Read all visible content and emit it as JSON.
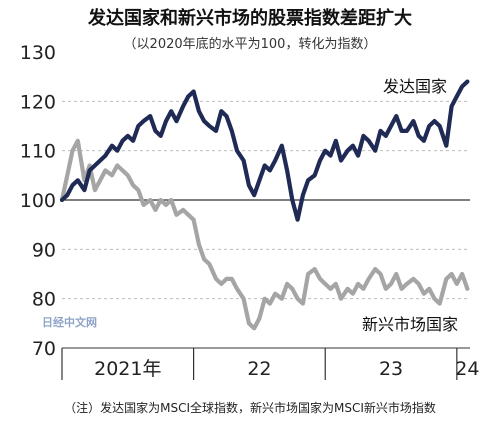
{
  "chart_data": {
    "type": "line",
    "title": "发达国家和新兴市场的股票指数差距扩大",
    "subtitle": "（以2020年底的水平为100，转化为指数）",
    "ylim": [
      70,
      130
    ],
    "yticks": [
      70,
      80,
      90,
      100,
      110,
      120,
      130
    ],
    "xlim": [
      2021.0,
      2024.1
    ],
    "xticks": [
      {
        "x": 2021.0,
        "label": ""
      },
      {
        "x": 2022.0,
        "label": ""
      },
      {
        "x": 2023.0,
        "label": ""
      },
      {
        "x": 2024.0,
        "label": ""
      }
    ],
    "xtick_labels": [
      {
        "x": 2021.5,
        "label": "2021年"
      },
      {
        "x": 2022.5,
        "label": "22"
      },
      {
        "x": 2023.5,
        "label": "23"
      },
      {
        "x": 2024.08,
        "label": "24"
      }
    ],
    "grid": true,
    "baseline": 100,
    "series": [
      {
        "name": "发达国家",
        "color": "#1f2a55",
        "x": [
          2021.0,
          2021.04,
          2021.08,
          2021.12,
          2021.17,
          2021.21,
          2021.25,
          2021.29,
          2021.33,
          2021.38,
          2021.42,
          2021.46,
          2021.5,
          2021.54,
          2021.58,
          2021.62,
          2021.67,
          2021.71,
          2021.75,
          2021.79,
          2021.83,
          2021.87,
          2021.92,
          2021.96,
          2022.0,
          2022.04,
          2022.08,
          2022.12,
          2022.17,
          2022.21,
          2022.25,
          2022.29,
          2022.33,
          2022.38,
          2022.42,
          2022.46,
          2022.5,
          2022.54,
          2022.58,
          2022.62,
          2022.67,
          2022.71,
          2022.75,
          2022.79,
          2022.83,
          2022.87,
          2022.92,
          2022.96,
          2023.0,
          2023.04,
          2023.08,
          2023.12,
          2023.17,
          2023.21,
          2023.25,
          2023.29,
          2023.33,
          2023.38,
          2023.42,
          2023.46,
          2023.5,
          2023.54,
          2023.58,
          2023.62,
          2023.67,
          2023.71,
          2023.75,
          2023.79,
          2023.83,
          2023.87,
          2023.92,
          2023.96,
          2024.0,
          2024.04,
          2024.08
        ],
        "values": [
          100,
          101,
          103,
          104,
          102,
          106,
          107,
          108,
          109,
          111,
          110,
          112,
          113,
          112,
          115,
          116,
          117,
          114,
          113,
          116,
          118,
          116,
          119,
          121,
          122,
          118,
          116,
          115,
          114,
          118,
          117,
          114,
          110,
          108,
          103,
          101,
          104,
          107,
          106,
          108,
          111,
          106,
          100,
          96,
          101,
          104,
          105,
          108,
          110,
          109,
          112,
          108,
          110,
          111,
          109,
          113,
          112,
          110,
          114,
          113,
          115,
          117,
          114,
          114,
          116,
          113,
          112,
          115,
          116,
          115,
          111,
          119,
          121,
          123,
          124
        ]
      },
      {
        "name": "新兴市场国家",
        "color": "#a5a5a5",
        "x": [
          2021.0,
          2021.04,
          2021.08,
          2021.12,
          2021.17,
          2021.21,
          2021.25,
          2021.29,
          2021.33,
          2021.38,
          2021.42,
          2021.46,
          2021.5,
          2021.54,
          2021.58,
          2021.62,
          2021.67,
          2021.71,
          2021.75,
          2021.79,
          2021.83,
          2021.87,
          2021.92,
          2021.96,
          2022.0,
          2022.04,
          2022.08,
          2022.12,
          2022.17,
          2022.21,
          2022.25,
          2022.29,
          2022.33,
          2022.38,
          2022.42,
          2022.46,
          2022.5,
          2022.54,
          2022.58,
          2022.62,
          2022.67,
          2022.71,
          2022.75,
          2022.79,
          2022.83,
          2022.87,
          2022.92,
          2022.96,
          2023.0,
          2023.04,
          2023.08,
          2023.12,
          2023.17,
          2023.21,
          2023.25,
          2023.29,
          2023.33,
          2023.38,
          2023.42,
          2023.46,
          2023.5,
          2023.54,
          2023.58,
          2023.62,
          2023.67,
          2023.71,
          2023.75,
          2023.79,
          2023.83,
          2023.87,
          2023.92,
          2023.96,
          2024.0,
          2024.04,
          2024.08
        ],
        "values": [
          100,
          105,
          110,
          112,
          104,
          107,
          102,
          104,
          106,
          105,
          107,
          106,
          105,
          103,
          102,
          99,
          100,
          98,
          100,
          99,
          100,
          97,
          98,
          97,
          96,
          91,
          88,
          87,
          84,
          83,
          84,
          84,
          82,
          80,
          75,
          74,
          76,
          80,
          79,
          81,
          80,
          83,
          82,
          80,
          79,
          85,
          86,
          84,
          83,
          82,
          83,
          80,
          82,
          81,
          83,
          82,
          84,
          86,
          85,
          82,
          83,
          85,
          82,
          83,
          84,
          83,
          81,
          82,
          80,
          79,
          84,
          85,
          83,
          85,
          82
        ]
      }
    ],
    "annotations": [
      {
        "text": "发达国家",
        "series": "发达国家"
      },
      {
        "text": "新兴市场国家",
        "series": "新兴市场国家"
      }
    ]
  },
  "note": "（注）发达国家为MSCI全球指数，新兴市场国家为MSCI新兴市场指数",
  "watermark": "日经中文网"
}
